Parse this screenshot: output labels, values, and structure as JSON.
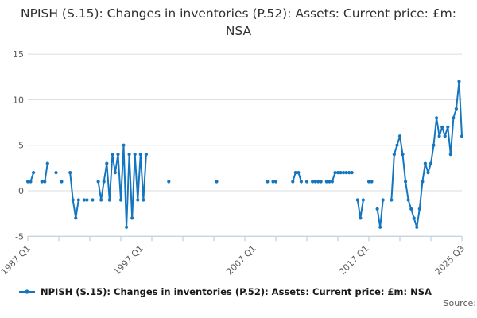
{
  "title": "NPISH (S.15): Changes in inventories (P.52): Assets: Current price: £m: NSA",
  "legend": {
    "label": "NPISH (S.15): Changes in inventories (P.52): Assets: Current price: £m: NSA"
  },
  "source_label": "Source:",
  "colors": {
    "line": "#1576bf",
    "grid": "#dcdcdc",
    "axis": "#c0cfe0",
    "tick_label": "#58595b",
    "title_text": "#303030"
  },
  "chart_data": {
    "type": "line",
    "title": "NPISH (S.15): Changes in inventories (P.52): Assets: Current price: £m: NSA",
    "xlabel": "",
    "ylabel": "",
    "unit": "£m",
    "x_start": "1987 Q1",
    "x_end": "2025 Q3",
    "ylim": [
      -5,
      15
    ],
    "y_ticks": [
      15,
      10,
      5,
      0,
      -5
    ],
    "x_tick_labels": [
      "1987 Q1",
      "1997 Q1",
      "2007 Q1",
      "2017 Q1",
      "2025 Q3"
    ],
    "grid": "horizontal",
    "legend_position": "bottom-left",
    "series": [
      {
        "name": "NPISH (S.15): Changes in inventories (P.52): Assets: Current price: £m: NSA",
        "points": [
          {
            "q": "1987 Q1",
            "v": 1
          },
          {
            "q": "1987 Q2",
            "v": 1
          },
          {
            "q": "1987 Q3",
            "v": 2
          },
          {
            "q": "1988 Q2",
            "v": 1
          },
          {
            "q": "1988 Q3",
            "v": 1
          },
          {
            "q": "1988 Q4",
            "v": 3
          },
          {
            "q": "1989 Q3",
            "v": 2
          },
          {
            "q": "1990 Q1",
            "v": 1
          },
          {
            "q": "1990 Q4",
            "v": 2
          },
          {
            "q": "1991 Q1",
            "v": -1
          },
          {
            "q": "1991 Q2",
            "v": -3
          },
          {
            "q": "1991 Q3",
            "v": -1
          },
          {
            "q": "1992 Q1",
            "v": -1
          },
          {
            "q": "1992 Q2",
            "v": -1
          },
          {
            "q": "1992 Q4",
            "v": -1
          },
          {
            "q": "1993 Q2",
            "v": 1
          },
          {
            "q": "1993 Q3",
            "v": -1
          },
          {
            "q": "1993 Q4",
            "v": 1
          },
          {
            "q": "1994 Q1",
            "v": 3
          },
          {
            "q": "1994 Q2",
            "v": -1
          },
          {
            "q": "1994 Q3",
            "v": 4
          },
          {
            "q": "1994 Q4",
            "v": 2
          },
          {
            "q": "1995 Q1",
            "v": 4
          },
          {
            "q": "1995 Q2",
            "v": -1
          },
          {
            "q": "1995 Q3",
            "v": 5
          },
          {
            "q": "1995 Q4",
            "v": -4
          },
          {
            "q": "1996 Q1",
            "v": 4
          },
          {
            "q": "1996 Q2",
            "v": -3
          },
          {
            "q": "1996 Q3",
            "v": 4
          },
          {
            "q": "1996 Q4",
            "v": -1
          },
          {
            "q": "1997 Q1",
            "v": 4
          },
          {
            "q": "1997 Q2",
            "v": -1
          },
          {
            "q": "1997 Q3",
            "v": 4
          },
          {
            "q": "1999 Q3",
            "v": 1
          },
          {
            "q": "2003 Q4",
            "v": 1
          },
          {
            "q": "2008 Q2",
            "v": 1
          },
          {
            "q": "2008 Q4",
            "v": 1
          },
          {
            "q": "2009 Q1",
            "v": 1
          },
          {
            "q": "2010 Q3",
            "v": 1
          },
          {
            "q": "2010 Q4",
            "v": 2
          },
          {
            "q": "2011 Q1",
            "v": 2
          },
          {
            "q": "2011 Q2",
            "v": 1
          },
          {
            "q": "2011 Q4",
            "v": 1
          },
          {
            "q": "2012 Q2",
            "v": 1
          },
          {
            "q": "2012 Q3",
            "v": 1
          },
          {
            "q": "2012 Q4",
            "v": 1
          },
          {
            "q": "2013 Q1",
            "v": 1
          },
          {
            "q": "2013 Q3",
            "v": 1
          },
          {
            "q": "2013 Q4",
            "v": 1
          },
          {
            "q": "2014 Q1",
            "v": 1
          },
          {
            "q": "2014 Q2",
            "v": 2
          },
          {
            "q": "2014 Q3",
            "v": 2
          },
          {
            "q": "2014 Q4",
            "v": 2
          },
          {
            "q": "2015 Q1",
            "v": 2
          },
          {
            "q": "2015 Q2",
            "v": 2
          },
          {
            "q": "2015 Q3",
            "v": 2
          },
          {
            "q": "2015 Q4",
            "v": 2
          },
          {
            "q": "2016 Q2",
            "v": -1
          },
          {
            "q": "2016 Q3",
            "v": -3
          },
          {
            "q": "2016 Q4",
            "v": -1
          },
          {
            "q": "2017 Q2",
            "v": 1
          },
          {
            "q": "2017 Q3",
            "v": 1
          },
          {
            "q": "2018 Q1",
            "v": -2
          },
          {
            "q": "2018 Q2",
            "v": -4
          },
          {
            "q": "2018 Q3",
            "v": -1
          },
          {
            "q": "2019 Q2",
            "v": -1
          },
          {
            "q": "2019 Q3",
            "v": 4
          },
          {
            "q": "2019 Q4",
            "v": 5
          },
          {
            "q": "2020 Q1",
            "v": 6
          },
          {
            "q": "2020 Q2",
            "v": 4
          },
          {
            "q": "2020 Q3",
            "v": 1
          },
          {
            "q": "2020 Q4",
            "v": -1
          },
          {
            "q": "2021 Q1",
            "v": -2
          },
          {
            "q": "2021 Q2",
            "v": -3
          },
          {
            "q": "2021 Q3",
            "v": -4
          },
          {
            "q": "2021 Q4",
            "v": -2
          },
          {
            "q": "2022 Q1",
            "v": 1
          },
          {
            "q": "2022 Q2",
            "v": 3
          },
          {
            "q": "2022 Q3",
            "v": 2
          },
          {
            "q": "2022 Q4",
            "v": 3
          },
          {
            "q": "2023 Q1",
            "v": 5
          },
          {
            "q": "2023 Q2",
            "v": 8
          },
          {
            "q": "2023 Q3",
            "v": 6
          },
          {
            "q": "2023 Q4",
            "v": 7
          },
          {
            "q": "2024 Q1",
            "v": 6
          },
          {
            "q": "2024 Q2",
            "v": 7
          },
          {
            "q": "2024 Q3",
            "v": 4
          },
          {
            "q": "2024 Q4",
            "v": 8
          },
          {
            "q": "2025 Q1",
            "v": 9
          },
          {
            "q": "2025 Q2",
            "v": 12
          },
          {
            "q": "2025 Q3",
            "v": 6
          }
        ]
      }
    ]
  }
}
